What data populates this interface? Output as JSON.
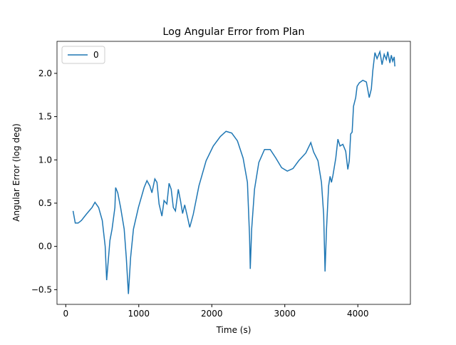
{
  "chart_data": {
    "type": "line",
    "title": "Log Angular Error from Plan",
    "x_label": "Time (s)",
    "y_label": "Angular Error (log deg)",
    "x": [
      100,
      130,
      170,
      215,
      280,
      360,
      400,
      450,
      500,
      540,
      560,
      605,
      634,
      673,
      683,
      712,
      751,
      800,
      829,
      858,
      888,
      927,
      995,
      1073,
      1112,
      1151,
      1180,
      1220,
      1249,
      1278,
      1317,
      1346,
      1385,
      1415,
      1444,
      1473,
      1502,
      1541,
      1571,
      1600,
      1629,
      1659,
      1698,
      1746,
      1824,
      1922,
      2020,
      2117,
      2195,
      2273,
      2351,
      2429,
      2488,
      2517,
      2527,
      2546,
      2585,
      2644,
      2722,
      2800,
      2878,
      2956,
      3034,
      3112,
      3190,
      3288,
      3356,
      3395,
      3454,
      3502,
      3532,
      3551,
      3571,
      3600,
      3620,
      3639,
      3659,
      3698,
      3727,
      3756,
      3795,
      3834,
      3863,
      3883,
      3902,
      3922,
      3941,
      3971,
      3990,
      4020,
      4068,
      4117,
      4156,
      4185,
      4205,
      4234,
      4263,
      4302,
      4332,
      4361,
      4390,
      4410,
      4439,
      4459,
      4478,
      4498,
      4507
    ],
    "series": [
      {
        "name": "0",
        "color": "#1f77b4",
        "values": [
          0.41,
          0.27,
          0.27,
          0.3,
          0.37,
          0.45,
          0.51,
          0.45,
          0.3,
          0.0,
          -0.39,
          0.07,
          0.2,
          0.45,
          0.68,
          0.62,
          0.45,
          0.2,
          -0.13,
          -0.55,
          -0.13,
          0.2,
          0.45,
          0.68,
          0.76,
          0.7,
          0.62,
          0.78,
          0.74,
          0.49,
          0.35,
          0.53,
          0.49,
          0.73,
          0.66,
          0.45,
          0.41,
          0.66,
          0.53,
          0.38,
          0.48,
          0.37,
          0.22,
          0.37,
          0.7,
          0.99,
          1.16,
          1.27,
          1.33,
          1.31,
          1.22,
          1.02,
          0.74,
          0.12,
          -0.26,
          0.2,
          0.66,
          0.97,
          1.12,
          1.12,
          1.02,
          0.91,
          0.87,
          0.9,
          0.99,
          1.08,
          1.2,
          1.09,
          0.99,
          0.74,
          0.37,
          -0.29,
          0.2,
          0.7,
          0.81,
          0.74,
          0.82,
          1.02,
          1.24,
          1.16,
          1.18,
          1.1,
          0.89,
          0.99,
          1.3,
          1.32,
          1.62,
          1.72,
          1.85,
          1.89,
          1.92,
          1.9,
          1.72,
          1.82,
          2.03,
          2.24,
          2.17,
          2.25,
          2.1,
          2.22,
          2.16,
          2.25,
          2.12,
          2.21,
          2.14,
          2.19,
          2.08
        ]
      }
    ],
    "xlim": [
      -120,
      4720
    ],
    "xticks": [
      0,
      1000,
      2000,
      3000,
      4000
    ],
    "ylim": [
      -0.67,
      2.37
    ],
    "yticks": [
      {
        "value": -0.5,
        "label": "−0.5"
      },
      {
        "value": 0,
        "label": "0.0"
      },
      {
        "value": 0.5,
        "label": "0.5"
      },
      {
        "value": 1,
        "label": "1.0"
      },
      {
        "value": 1.5,
        "label": "1.5"
      },
      {
        "value": 2,
        "label": "2.0"
      }
    ],
    "legend": "upper left"
  }
}
